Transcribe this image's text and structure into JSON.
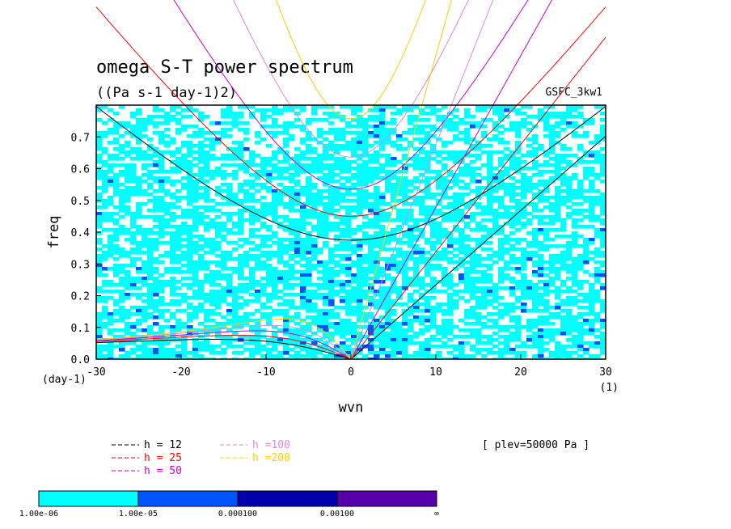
{
  "chart_data": {
    "type": "heatmap",
    "title": "omega S-T power spectrum",
    "subtitle": "((Pa s-1 day-1)2)",
    "model_label": "GSFC_3kw1",
    "xlabel": "wvn",
    "ylabel": "freq",
    "x_unit_label": "(1)",
    "y_unit_label": "(day-1)",
    "xlim": [
      -30,
      30
    ],
    "ylim": [
      0,
      0.8
    ],
    "x_ticks": [
      -30,
      -20,
      -10,
      0,
      10,
      20,
      30
    ],
    "x_tick_labels": [
      "-30",
      "-20",
      "-10",
      "0",
      "10",
      "20",
      "30"
    ],
    "y_ticks": [
      0,
      0.1,
      0.2,
      0.3,
      0.4,
      0.5,
      0.6,
      0.7
    ],
    "y_tick_labels": [
      "0.0",
      "0.1",
      "0.2",
      "0.3",
      "0.4",
      "0.5",
      "0.6",
      "0.7"
    ],
    "annotation": "[ plev=50000 Pa ]",
    "dispersion_curves": [
      {
        "name": "h = 12",
        "h": 12,
        "color": "#000000"
      },
      {
        "name": "h = 25",
        "h": 25,
        "color": "#ff0000"
      },
      {
        "name": "h = 50",
        "h": 50,
        "color": "#cc00cc"
      },
      {
        "name": "h =100",
        "h": 100,
        "color": "#dd88dd"
      },
      {
        "name": "h =200",
        "h": 200,
        "color": "#ffcc00"
      }
    ],
    "colorbar": {
      "colors": [
        "#00ffff",
        "#0055ff",
        "#0000aa",
        "#5500aa"
      ],
      "labels": [
        "1.00e-06",
        "1.00e-05",
        "0.000100",
        "0.00100",
        "∞"
      ]
    }
  }
}
